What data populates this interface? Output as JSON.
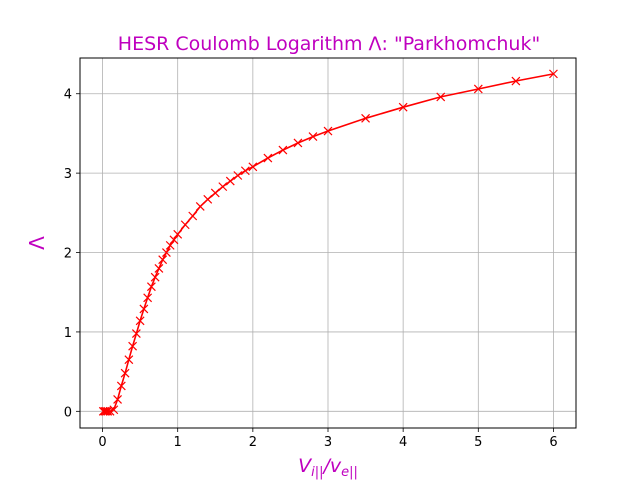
{
  "chart_data": {
    "type": "line",
    "title": "HESR Coulomb Logarithm Λ: \"Parkhomchuk\"",
    "xlabel_main": "V",
    "xlabel_sub1": "i||",
    "xlabel_sep": "/v",
    "xlabel_sub2": "e||",
    "ylabel": "Λ",
    "xlim": [
      -0.3,
      6.3
    ],
    "ylim": [
      -0.21,
      4.45
    ],
    "xticks": [
      0,
      1,
      2,
      3,
      4,
      5,
      6
    ],
    "yticks": [
      0,
      1,
      2,
      3,
      4
    ],
    "grid": true,
    "colors": {
      "series": "#ff0000",
      "title": "#bf00bf",
      "grid": "#b0b0b0"
    },
    "series": [
      {
        "marker": "x",
        "x": [
          0.01,
          0.03,
          0.05,
          0.07,
          0.1,
          0.15,
          0.2,
          0.25,
          0.3,
          0.35,
          0.4,
          0.45,
          0.5,
          0.55,
          0.6,
          0.65,
          0.7,
          0.75,
          0.8,
          0.85,
          0.9,
          0.95,
          1.0,
          1.1,
          1.2,
          1.3,
          1.4,
          1.5,
          1.6,
          1.7,
          1.8,
          1.9,
          2.0,
          2.2,
          2.4,
          2.6,
          2.8,
          3.0,
          3.5,
          4.0,
          4.5,
          5.0,
          5.5,
          6.0
        ],
        "y": [
          0.0,
          0.0,
          0.0,
          0.0,
          0.0,
          0.02,
          0.15,
          0.32,
          0.48,
          0.65,
          0.82,
          0.98,
          1.14,
          1.29,
          1.43,
          1.57,
          1.69,
          1.8,
          1.91,
          2.0,
          2.09,
          2.16,
          2.23,
          2.35,
          2.46,
          2.58,
          2.67,
          2.75,
          2.83,
          2.9,
          2.97,
          3.03,
          3.08,
          3.19,
          3.29,
          3.38,
          3.46,
          3.53,
          3.69,
          3.83,
          3.96,
          4.06,
          4.16,
          4.25
        ]
      }
    ]
  }
}
